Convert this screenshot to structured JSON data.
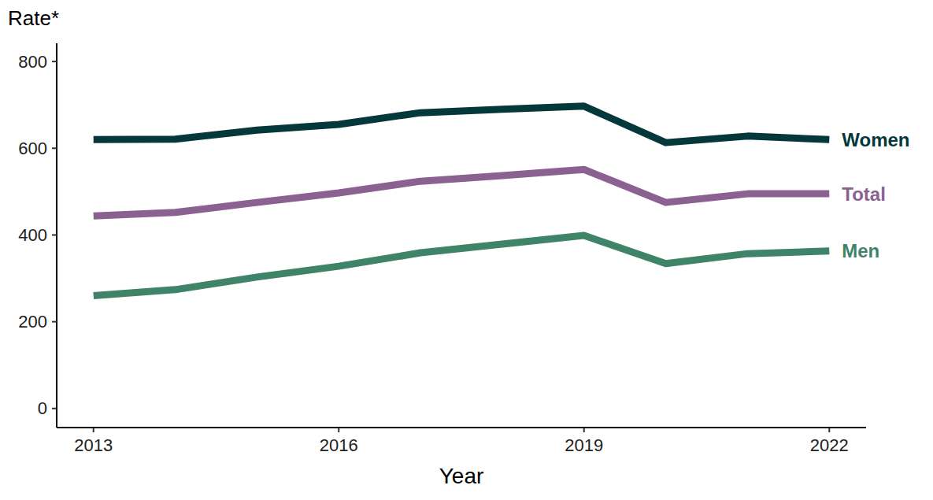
{
  "chart_data": {
    "type": "line",
    "x_label": "Year",
    "y_label": "Rate*",
    "x": [
      2013,
      2014,
      2015,
      2016,
      2017,
      2018,
      2019,
      2020,
      2021,
      2022
    ],
    "xlim": [
      2012.55,
      2022.45
    ],
    "xticks": [
      2013,
      2016,
      2019,
      2022
    ],
    "ylim": [
      -44,
      842
    ],
    "yticks": [
      0,
      200,
      400,
      600,
      800
    ],
    "grid": false,
    "series": [
      {
        "name": "Women",
        "color": "#04383a",
        "values": [
          620,
          621,
          642,
          655,
          682,
          690,
          697,
          613,
          628,
          620
        ]
      },
      {
        "name": "Total",
        "color": "#8a6190",
        "values": [
          444,
          452,
          475,
          497,
          524,
          537,
          551,
          475,
          495,
          495
        ]
      },
      {
        "name": "Men",
        "color": "#3f8369",
        "values": [
          260,
          274,
          303,
          328,
          359,
          379,
          399,
          334,
          357,
          363
        ]
      }
    ]
  }
}
